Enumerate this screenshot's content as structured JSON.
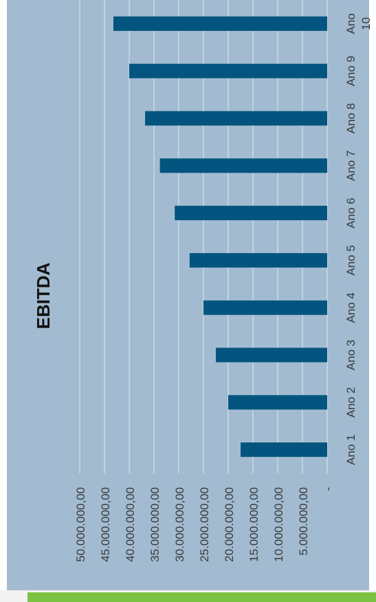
{
  "colors": {
    "panel_background": "#a2bbd1",
    "bar": "#03557f",
    "grid": "#dfe8ef",
    "text": "#3a3a3a",
    "title": "#111111",
    "accent_strip": "#7bc142"
  },
  "chart_data": {
    "type": "bar",
    "orientation": "horizontal",
    "title": "EBITDA",
    "categories": [
      "Ano 1",
      "Ano 2",
      "Ano 3",
      "Ano 4",
      "Ano 5",
      "Ano 6",
      "Ano 7",
      "Ano 8",
      "Ano 9",
      "Ano 10"
    ],
    "values": [
      17500000,
      20000000,
      22500000,
      25000000,
      27800000,
      30800000,
      33800000,
      36800000,
      40000000,
      43200000
    ],
    "value_axis_ticks": [
      "-",
      "5.000.000,00",
      "10.000.000,00",
      "15.000.000,00",
      "20.000.000,00",
      "25.000.000,00",
      "30.000.000,00",
      "35.000.000,00",
      "40.000.000,00",
      "45.000.000,00",
      "50.000.000,00"
    ],
    "ylim": [
      0,
      50000000
    ],
    "grid": true,
    "legend": "none",
    "xlabel": "",
    "ylabel": ""
  }
}
